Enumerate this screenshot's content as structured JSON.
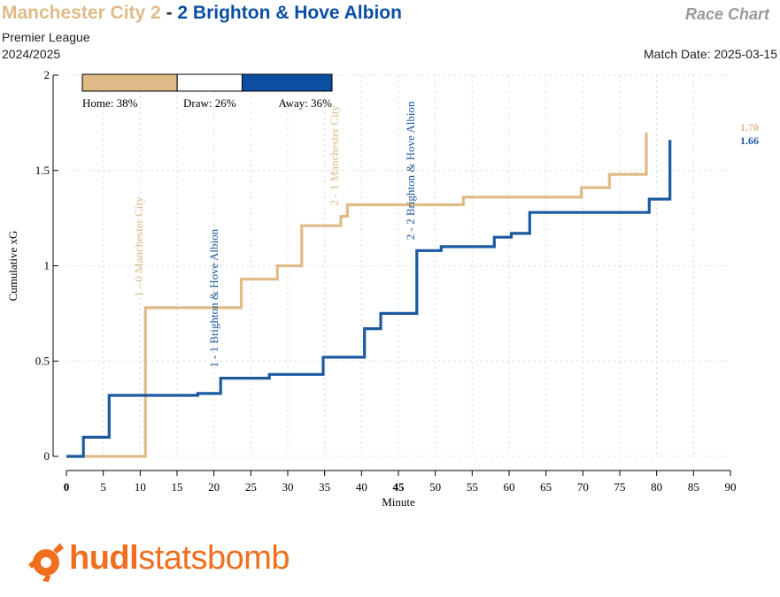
{
  "header": {
    "home_part": "Manchester City 2",
    "separator": " - ",
    "away_part": "2 Brighton & Hove Albion",
    "chart_type": "Race Chart",
    "competition": "Premier League",
    "season": "2024/2025",
    "match_date": "Match Date: 2025-03-15"
  },
  "colors": {
    "home": "#dfbb88",
    "away": "#1b5aa0",
    "logo": "#ef6f1f"
  },
  "logo": {
    "text_bold": "hudl",
    "text_regular": "statsbomb"
  },
  "chart_data": {
    "type": "line",
    "step": true,
    "xlabel": "Minute",
    "ylabel": "Cumulative xG",
    "xlim": [
      0,
      90
    ],
    "ylim": [
      0,
      2
    ],
    "xticks": [
      0,
      5,
      10,
      15,
      20,
      25,
      30,
      35,
      40,
      45,
      50,
      55,
      60,
      65,
      70,
      75,
      80,
      85,
      90
    ],
    "yticks": [
      0,
      0.5,
      1,
      1.5,
      2
    ],
    "ytick_labels": [
      "0",
      "0.5",
      "1",
      "1.5",
      "2"
    ],
    "bold_xticks": [
      0,
      45
    ],
    "grid": true,
    "win_probability": {
      "home_label": "Home: 38%",
      "draw_label": "Draw: 26%",
      "away_label": "Away: 36%",
      "home": 38,
      "draw": 26,
      "away": 36
    },
    "series": [
      {
        "name": "Manchester City",
        "color": "#dfbb88",
        "final_label": "1.70",
        "points": [
          [
            0,
            0
          ],
          [
            10.7,
            0
          ],
          [
            10.7,
            0.78
          ],
          [
            23.7,
            0.78
          ],
          [
            23.7,
            0.93
          ],
          [
            28.6,
            0.93
          ],
          [
            28.6,
            1.0
          ],
          [
            31.9,
            1.0
          ],
          [
            31.9,
            1.21
          ],
          [
            37.2,
            1.21
          ],
          [
            37.2,
            1.26
          ],
          [
            38.1,
            1.26
          ],
          [
            38.1,
            1.32
          ],
          [
            53.8,
            1.32
          ],
          [
            53.8,
            1.36
          ],
          [
            69.8,
            1.36
          ],
          [
            69.8,
            1.41
          ],
          [
            73.6,
            1.41
          ],
          [
            73.6,
            1.48
          ],
          [
            78.6,
            1.48
          ],
          [
            78.6,
            1.7
          ]
        ]
      },
      {
        "name": "Brighton & Hove Albion",
        "color": "#1b5aa0",
        "final_label": "1.66",
        "points": [
          [
            0,
            0
          ],
          [
            2.3,
            0
          ],
          [
            2.3,
            0.1
          ],
          [
            5.8,
            0.1
          ],
          [
            5.8,
            0.32
          ],
          [
            17.8,
            0.32
          ],
          [
            17.8,
            0.33
          ],
          [
            20.9,
            0.33
          ],
          [
            20.9,
            0.41
          ],
          [
            27.5,
            0.41
          ],
          [
            27.5,
            0.43
          ],
          [
            34.8,
            0.43
          ],
          [
            34.8,
            0.52
          ],
          [
            40.4,
            0.52
          ],
          [
            40.4,
            0.67
          ],
          [
            42.6,
            0.67
          ],
          [
            42.6,
            0.75
          ],
          [
            47.5,
            0.75
          ],
          [
            47.5,
            1.08
          ],
          [
            50.8,
            1.08
          ],
          [
            50.8,
            1.1
          ],
          [
            58.0,
            1.1
          ],
          [
            58.0,
            1.15
          ],
          [
            60.3,
            1.15
          ],
          [
            60.3,
            1.17
          ],
          [
            62.8,
            1.17
          ],
          [
            62.8,
            1.28
          ],
          [
            79.0,
            1.28
          ],
          [
            79.0,
            1.35
          ],
          [
            81.8,
            1.35
          ],
          [
            81.8,
            1.66
          ]
        ]
      }
    ],
    "goal_annotations": [
      {
        "minute": 10.7,
        "text": "1 - 0 Manchester City",
        "team": "home"
      },
      {
        "minute": 20.9,
        "text": "1 - 1 Brighton & Hove Albion",
        "team": "away"
      },
      {
        "minute": 37.2,
        "text": "2 - 1 Manchester City",
        "team": "home"
      },
      {
        "minute": 47.5,
        "text": "2 - 2 Brighton & Hove Albion",
        "team": "away"
      }
    ]
  }
}
